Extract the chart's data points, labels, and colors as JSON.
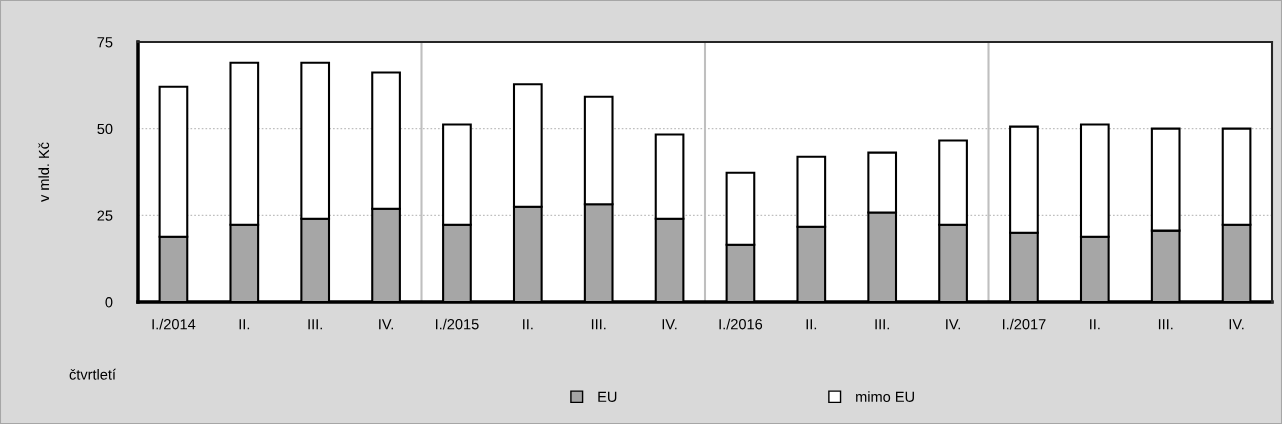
{
  "chart_data": {
    "type": "bar",
    "stacked": true,
    "categories": [
      "I./2014",
      "II.",
      "III.",
      "IV.",
      "I./2015",
      "II.",
      "III.",
      "IV.",
      "I./2016",
      "II.",
      "III.",
      "IV.",
      "I./2017",
      "II.",
      "III.",
      "IV."
    ],
    "series": [
      {
        "name": "EU",
        "color": "#a6a6a6",
        "values": [
          18.8,
          22.3,
          24.0,
          26.9,
          22.3,
          27.5,
          28.2,
          24.0,
          16.5,
          21.7,
          25.8,
          22.3,
          20.0,
          18.8,
          20.6,
          22.3
        ]
      },
      {
        "name": "mimo EU",
        "color": "#ffffff",
        "values": [
          43.3,
          46.7,
          45.0,
          39.3,
          28.9,
          35.3,
          31.0,
          24.3,
          20.8,
          20.2,
          17.3,
          24.3,
          30.6,
          32.4,
          29.4,
          27.7
        ]
      }
    ],
    "xlabel": "čtvrtletí",
    "ylabel": "v mld. Kč",
    "ylim": [
      0,
      75
    ],
    "yticks": [
      0,
      25,
      50,
      75
    ],
    "grid": "y",
    "legend": "bottom"
  }
}
